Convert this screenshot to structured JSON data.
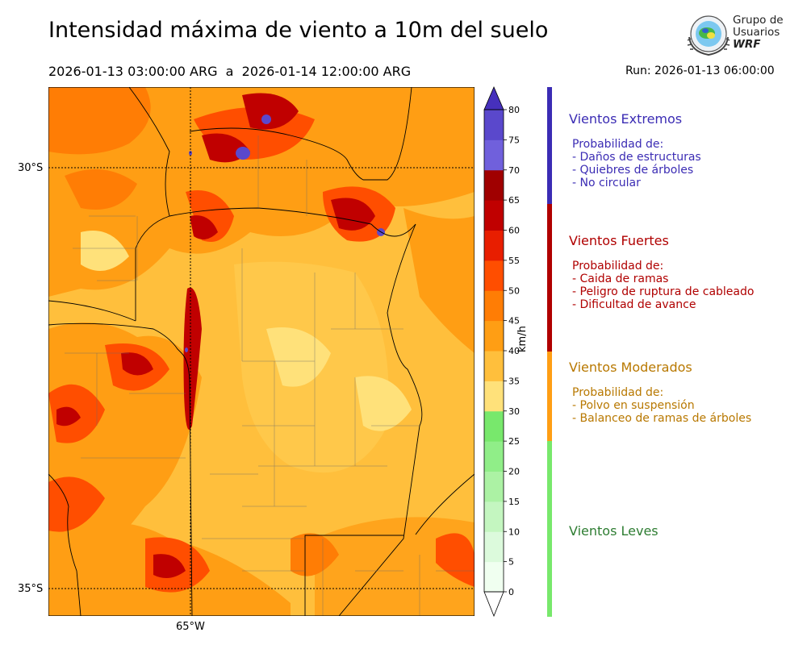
{
  "title": "Intensidad máxima de viento a 10m del suelo",
  "period": {
    "start": "2026-01-13 03:00:00 ARG",
    "sep": "a",
    "end": "2026-01-14 12:00:00 ARG"
  },
  "run": "Run: 2026-01-13 06:00:00",
  "logo": {
    "line1": "Grupo de",
    "line2": "Usuarios",
    "line3": "WRF"
  },
  "map": {
    "lat_labels": [
      "30°S",
      "35°S"
    ],
    "lon_labels": [
      "65°W"
    ]
  },
  "colorbar": {
    "unit": "km/h",
    "ticks": [
      "0",
      "5",
      "10",
      "15",
      "20",
      "25",
      "30",
      "35",
      "40",
      "45",
      "50",
      "55",
      "60",
      "65",
      "70",
      "75",
      "80"
    ],
    "colors": [
      "#f0fff0",
      "#dcfadc",
      "#c4f6c0",
      "#acf2a4",
      "#90ee88",
      "#78e86c",
      "#ffe17a",
      "#ffbf3c",
      "#ff9e14",
      "#ff7d05",
      "#ff4e00",
      "#e81e00",
      "#c00000",
      "#a00000",
      "#7060dc",
      "#5a48cc",
      "#4630bc"
    ]
  },
  "categories": [
    {
      "name": "Vientos Extremos",
      "color": "#3b2cb4",
      "prob": "Probabilidad de:",
      "items": [
        "- Daños de estructuras",
        "- Quiebres de árboles",
        "- No circular"
      ]
    },
    {
      "name": "Vientos Fuertes",
      "color": "#b00000",
      "prob": "Probabilidad de:",
      "items": [
        "- Caida de ramas",
        "- Peligro de ruptura de cableado",
        "- Dificultad de avance"
      ]
    },
    {
      "name": "Vientos Moderados",
      "color": "#b87800",
      "bar_color": "#ff9e14",
      "prob": "Probabilidad de:",
      "items": [
        "- Polvo en suspensión",
        "- Balanceo de ramas de árboles"
      ]
    },
    {
      "name": "Vientos Leves",
      "color": "#2e7d32",
      "bar_color": "#78e86c"
    }
  ]
}
